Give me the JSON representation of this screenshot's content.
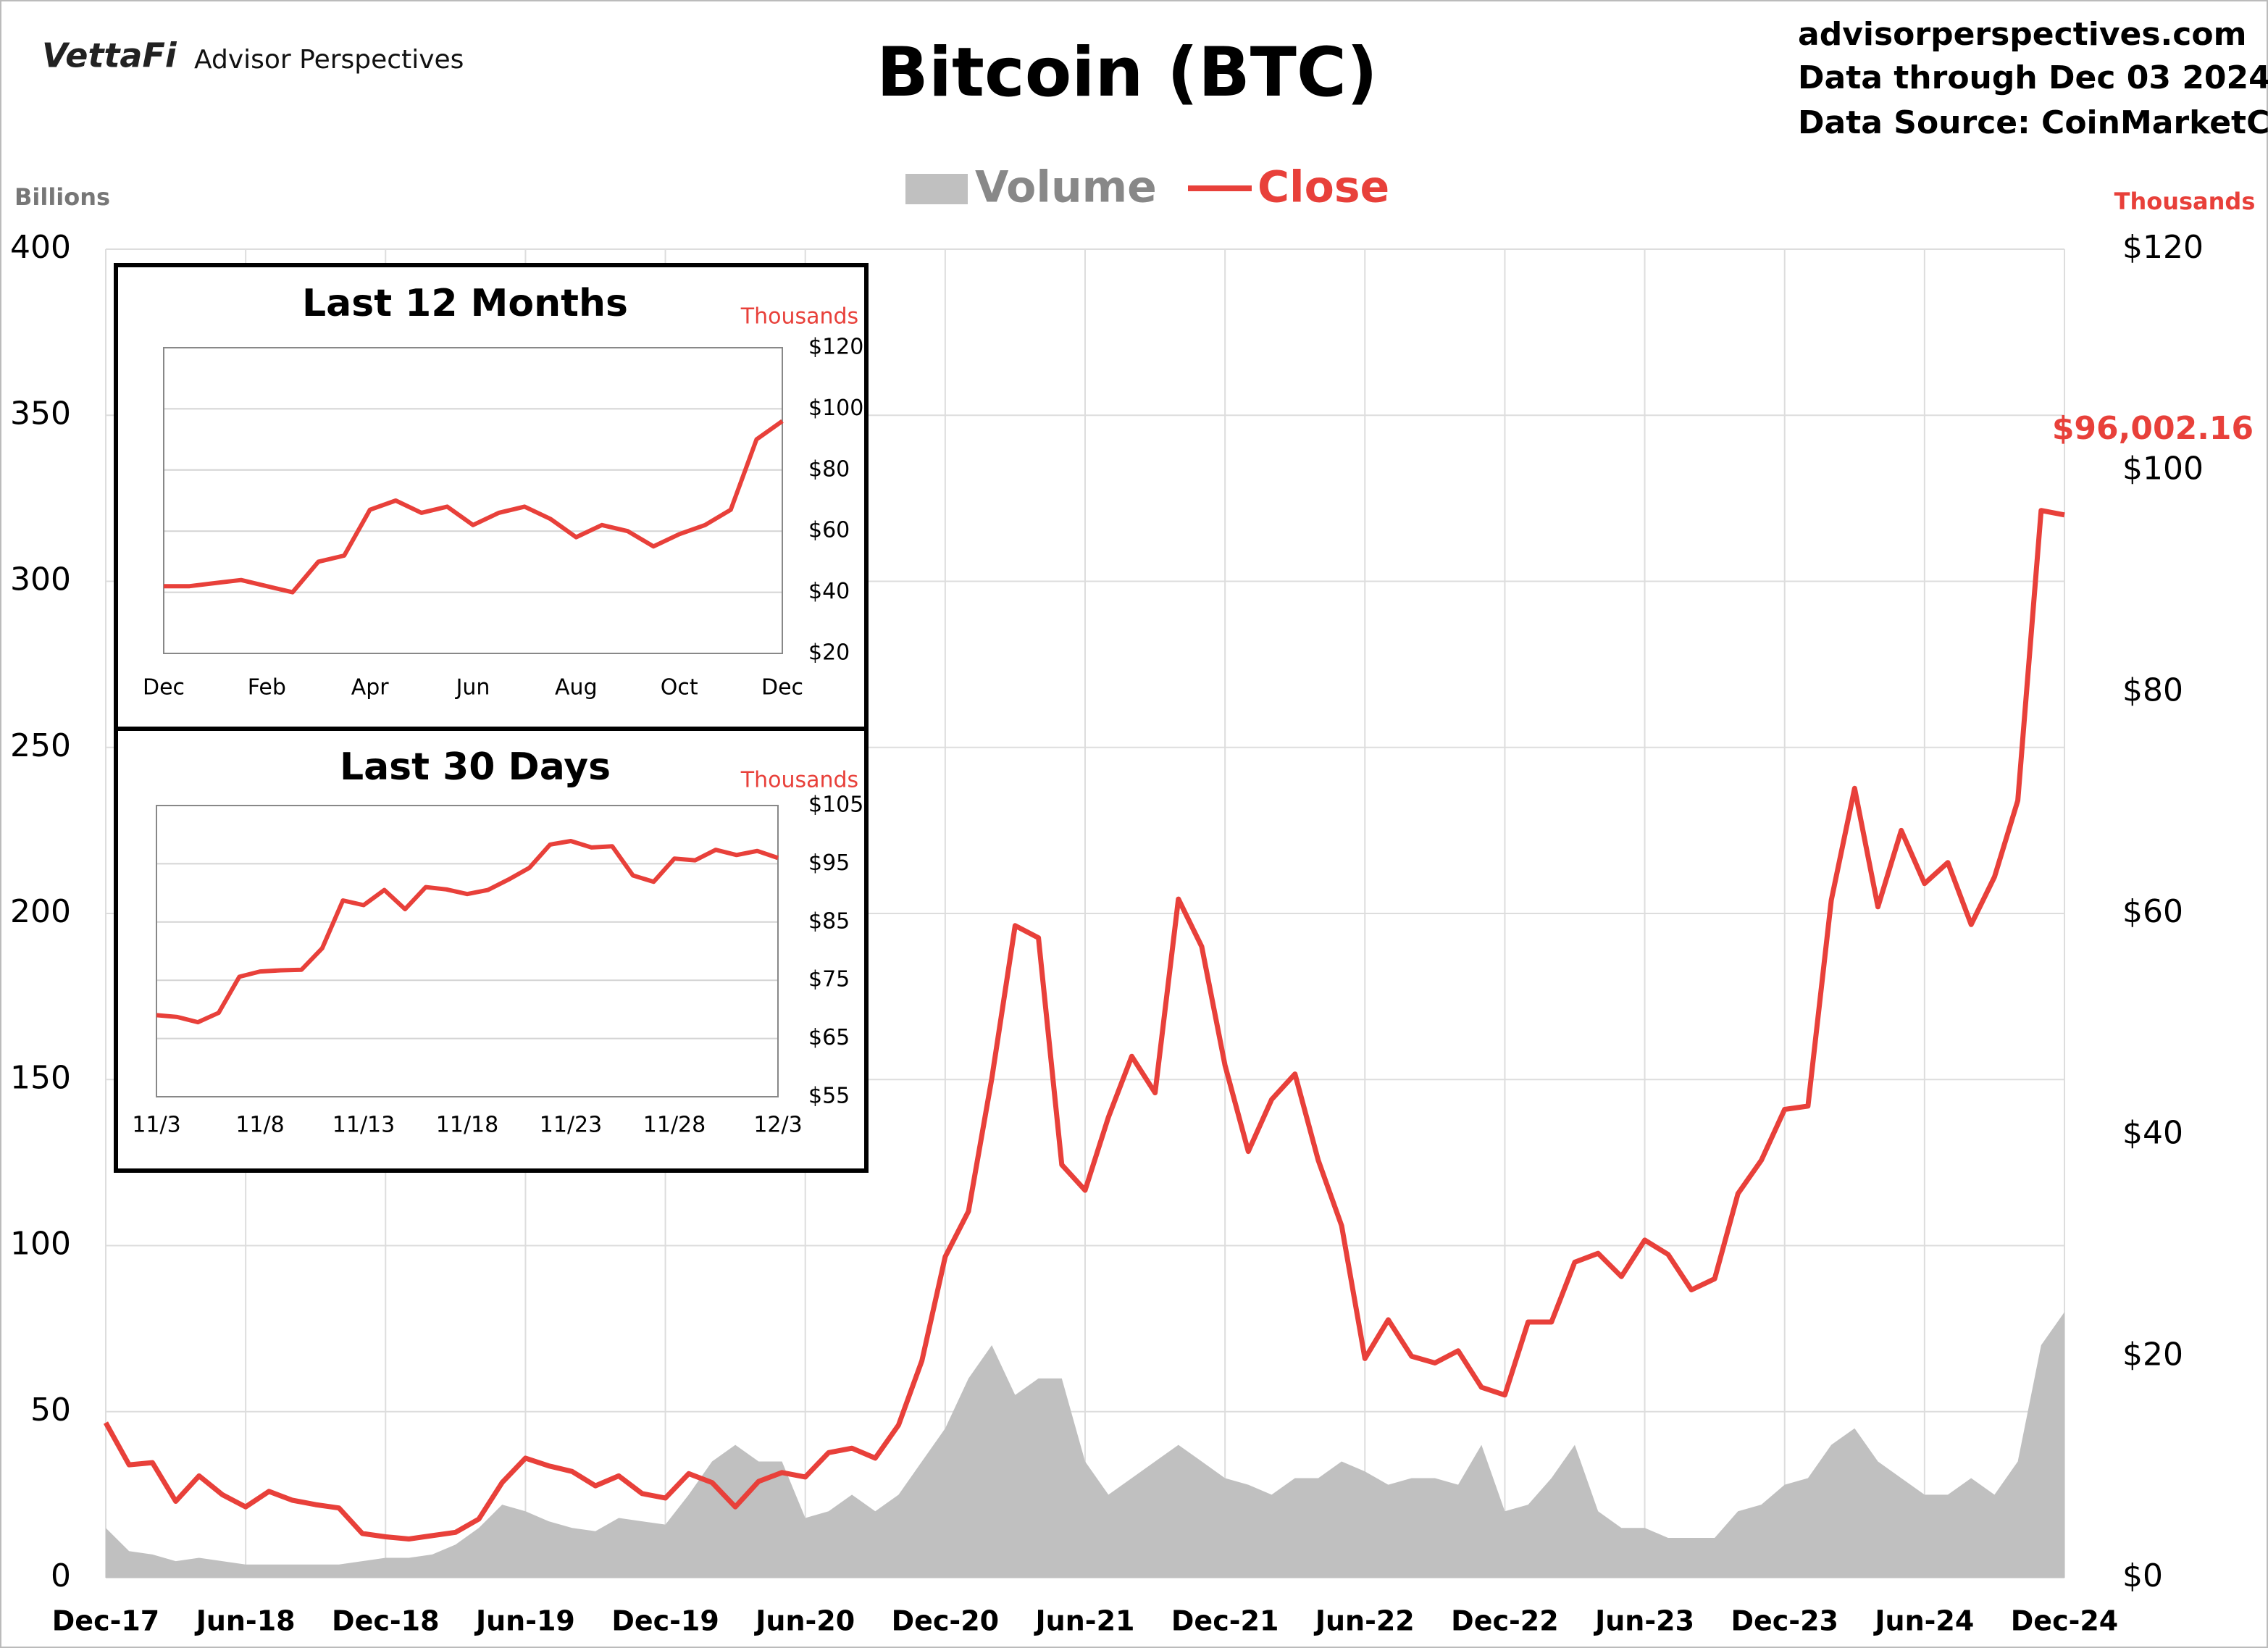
{
  "header": {
    "logo": "VettaFi",
    "brand": "Advisor Perspectives",
    "site": "advisorperspectives.com",
    "through": "Data through Dec 03 2024",
    "source": "Data Source: CoinMarketCap"
  },
  "chart_data": [
    {
      "type": "combo",
      "title": "Bitcoin (BTC)",
      "y_label": "Billions",
      "y2_label": "Thousands",
      "annotation": "$96,002.16",
      "grid": true,
      "legend": "top",
      "categories": [
        "Dec-17",
        null,
        null,
        null,
        null,
        null,
        "Jun-18",
        null,
        null,
        null,
        null,
        null,
        "Dec-18",
        null,
        null,
        null,
        null,
        null,
        "Jun-19",
        null,
        null,
        null,
        null,
        null,
        "Dec-19",
        null,
        null,
        null,
        null,
        null,
        "Jun-20",
        null,
        null,
        null,
        null,
        null,
        "Dec-20",
        null,
        null,
        null,
        null,
        null,
        "Jun-21",
        null,
        null,
        null,
        null,
        null,
        "Dec-21",
        null,
        null,
        null,
        null,
        null,
        "Jun-22",
        null,
        null,
        null,
        null,
        null,
        "Dec-22",
        null,
        null,
        null,
        null,
        null,
        "Jun-23",
        null,
        null,
        null,
        null,
        null,
        "Dec-23",
        null,
        null,
        null,
        null,
        null,
        "Jun-24",
        null,
        null,
        null,
        null,
        null,
        "Dec-24"
      ],
      "series": [
        {
          "name": "Volume",
          "kind": "area",
          "axis": "y",
          "color": "#c0c0c0",
          "values": [
            15,
            8,
            7,
            5,
            6,
            5,
            4,
            4,
            4,
            4,
            4,
            5,
            6,
            6,
            7,
            10,
            15,
            22,
            20,
            17,
            15,
            14,
            18,
            17,
            16,
            25,
            35,
            40,
            35,
            35,
            18,
            20,
            25,
            20,
            25,
            35,
            45,
            60,
            70,
            55,
            60,
            60,
            35,
            25,
            30,
            35,
            40,
            35,
            30,
            28,
            25,
            30,
            30,
            35,
            32,
            28,
            30,
            30,
            28,
            40,
            20,
            22,
            30,
            40,
            20,
            15,
            15,
            12,
            12,
            12,
            20,
            22,
            28,
            30,
            40,
            45,
            35,
            30,
            25,
            25,
            30,
            25,
            35,
            70,
            80
          ]
        },
        {
          "name": "Close",
          "kind": "line",
          "axis": "y2",
          "color": "#e8403a",
          "values": [
            14,
            10.2,
            10.4,
            6.9,
            9.2,
            7.5,
            6.4,
            7.8,
            7.0,
            6.6,
            6.3,
            4.0,
            3.7,
            3.5,
            3.8,
            4.1,
            5.3,
            8.6,
            10.8,
            10.1,
            9.6,
            8.3,
            9.2,
            7.6,
            7.2,
            9.4,
            8.6,
            6.4,
            8.7,
            9.5,
            9.1,
            11.3,
            11.7,
            10.8,
            13.8,
            19.6,
            29.0,
            33.1,
            45.1,
            58.9,
            57.8,
            37.3,
            35.0,
            41.6,
            47.1,
            43.8,
            61.3,
            57.0,
            46.3,
            38.5,
            43.2,
            45.5,
            37.7,
            31.8,
            19.8,
            23.3,
            20.0,
            19.4,
            20.5,
            17.2,
            16.5,
            23.1,
            23.1,
            28.5,
            29.3,
            27.2,
            30.5,
            29.2,
            26.0,
            27.0,
            34.7,
            37.7,
            42.3,
            42.6,
            61.2,
            71.3,
            60.6,
            67.5,
            62.7,
            64.6,
            59.0,
            63.3,
            70.2,
            96.4,
            96.0
          ]
        }
      ],
      "ylim": [
        0,
        400
      ],
      "yticks": [
        0,
        50,
        100,
        150,
        200,
        250,
        300,
        350,
        400
      ],
      "y2lim": [
        0,
        120
      ],
      "y2ticks": [
        {
          "value": 0,
          "label": "$0"
        },
        {
          "value": 20,
          "label": "$20"
        },
        {
          "value": 40,
          "label": "$40"
        },
        {
          "value": 60,
          "label": "$60"
        },
        {
          "value": 80,
          "label": "$80"
        },
        {
          "value": 100,
          "label": "$100"
        },
        {
          "value": 120,
          "label": "$120"
        }
      ]
    },
    {
      "type": "line",
      "title": "Last 12 Months",
      "y_label": "Thousands",
      "categories": [
        "Dec",
        null,
        null,
        null,
        "Feb",
        null,
        null,
        null,
        "Apr",
        null,
        null,
        null,
        "Jun",
        null,
        null,
        null,
        "Aug",
        null,
        null,
        null,
        "Oct",
        null,
        null,
        null,
        "Dec"
      ],
      "series": [
        {
          "name": "Close",
          "color": "#e8403a",
          "values": [
            42,
            42,
            43,
            44,
            42,
            40,
            50,
            52,
            67,
            70,
            66,
            68,
            62,
            66,
            68,
            64,
            58,
            62,
            60,
            55,
            59,
            62,
            67,
            90,
            96
          ]
        }
      ],
      "ylim": [
        20,
        120
      ],
      "yticks": [
        {
          "value": 20,
          "label": "$20"
        },
        {
          "value": 40,
          "label": "$40"
        },
        {
          "value": 60,
          "label": "$60"
        },
        {
          "value": 80,
          "label": "$80"
        },
        {
          "value": 100,
          "label": "$100"
        },
        {
          "value": 120,
          "label": "$120"
        }
      ]
    },
    {
      "type": "line",
      "title": "Last 30 Days",
      "y_label": "Thousands",
      "categories": [
        "11/3",
        null,
        null,
        null,
        null,
        "11/8",
        null,
        null,
        null,
        null,
        "11/13",
        null,
        null,
        null,
        null,
        "11/18",
        null,
        null,
        null,
        null,
        "11/23",
        null,
        null,
        null,
        null,
        "11/28",
        null,
        null,
        null,
        null,
        "12/3"
      ],
      "series": [
        {
          "name": "Close",
          "color": "#e8403a",
          "values": [
            69,
            68.7,
            67.8,
            69.4,
            75.6,
            76.5,
            76.7,
            76.8,
            80.5,
            88.7,
            87.9,
            90.5,
            87.2,
            91,
            90.6,
            89.8,
            90.5,
            92.3,
            94.3,
            98.3,
            98.9,
            97.8,
            98,
            93,
            91.9,
            95.9,
            95.6,
            97.4,
            96.5,
            97.2,
            96
          ]
        }
      ],
      "ylim": [
        55,
        105
      ],
      "yticks": [
        {
          "value": 55,
          "label": "$55"
        },
        {
          "value": 65,
          "label": "$65"
        },
        {
          "value": 75,
          "label": "$75"
        },
        {
          "value": 85,
          "label": "$85"
        },
        {
          "value": 95,
          "label": "$95"
        },
        {
          "value": 105,
          "label": "$105"
        }
      ]
    }
  ]
}
